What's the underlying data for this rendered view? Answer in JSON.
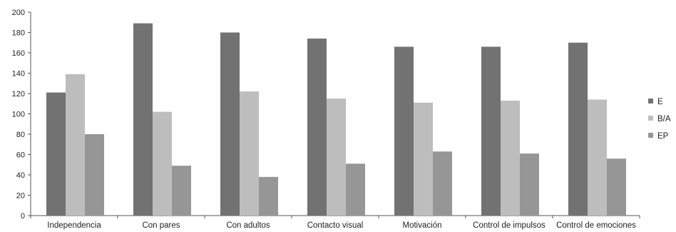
{
  "chart_data": {
    "type": "bar",
    "title": "",
    "xlabel": "",
    "ylabel": "",
    "categories": [
      "Independencia",
      "Con pares",
      "Con adultos",
      "Contacto visual",
      "Motivación",
      "Control de impulsos",
      "Control de emociones"
    ],
    "series": [
      {
        "name": "E",
        "color": "#727272",
        "values": [
          121,
          189,
          180,
          174,
          166,
          166,
          170
        ]
      },
      {
        "name": "B/A",
        "color": "#bdbdbd",
        "values": [
          139,
          102,
          122,
          115,
          111,
          113,
          114
        ]
      },
      {
        "name": "EP",
        "color": "#969696",
        "values": [
          80,
          49,
          38,
          51,
          63,
          61,
          56
        ]
      }
    ],
    "ylim": [
      0,
      200
    ],
    "yticks": [
      0,
      20,
      40,
      60,
      80,
      100,
      120,
      140,
      160,
      180,
      200
    ],
    "grid": false,
    "legend_position": "right"
  }
}
